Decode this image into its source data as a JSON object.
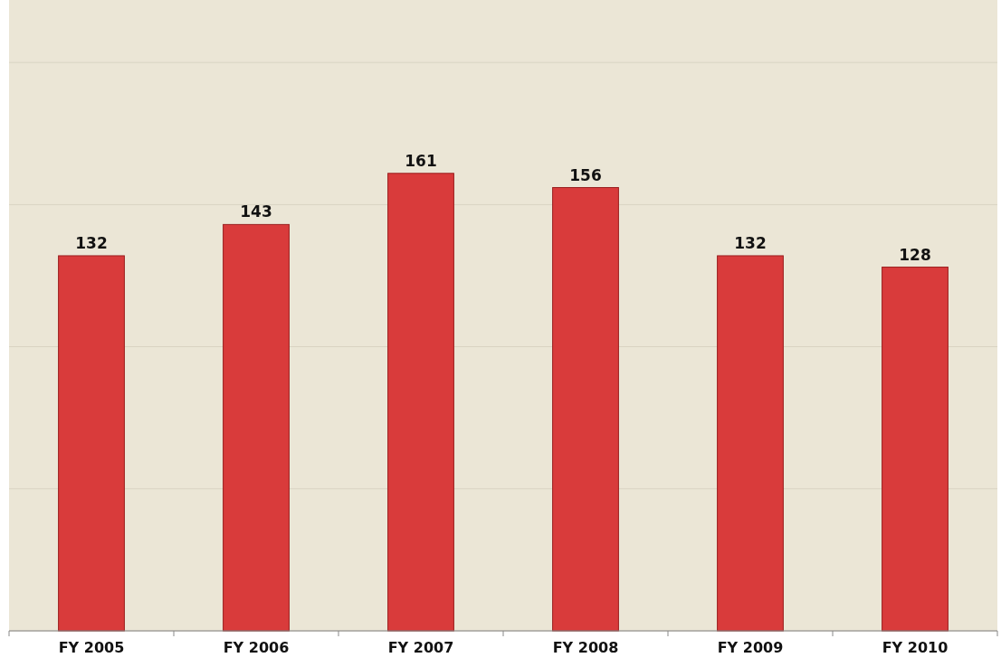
{
  "chart_data": {
    "type": "bar",
    "categories": [
      "FY 2005",
      "FY 2006",
      "FY 2007",
      "FY 2008",
      "FY 2009",
      "FY 2010"
    ],
    "values": [
      132,
      143,
      161,
      156,
      132,
      128
    ],
    "color": "#d93b3b",
    "ylim": [
      0,
      222
    ],
    "yticks": [
      {
        "value": 0,
        "label": null
      },
      {
        "value": 50,
        "label": null
      },
      {
        "value": 100,
        "label": null
      },
      {
        "value": 150,
        "label": null
      },
      {
        "value": 200,
        "label": null
      }
    ],
    "tick_labels": "x",
    "grid": "y",
    "data_labels": true
  }
}
